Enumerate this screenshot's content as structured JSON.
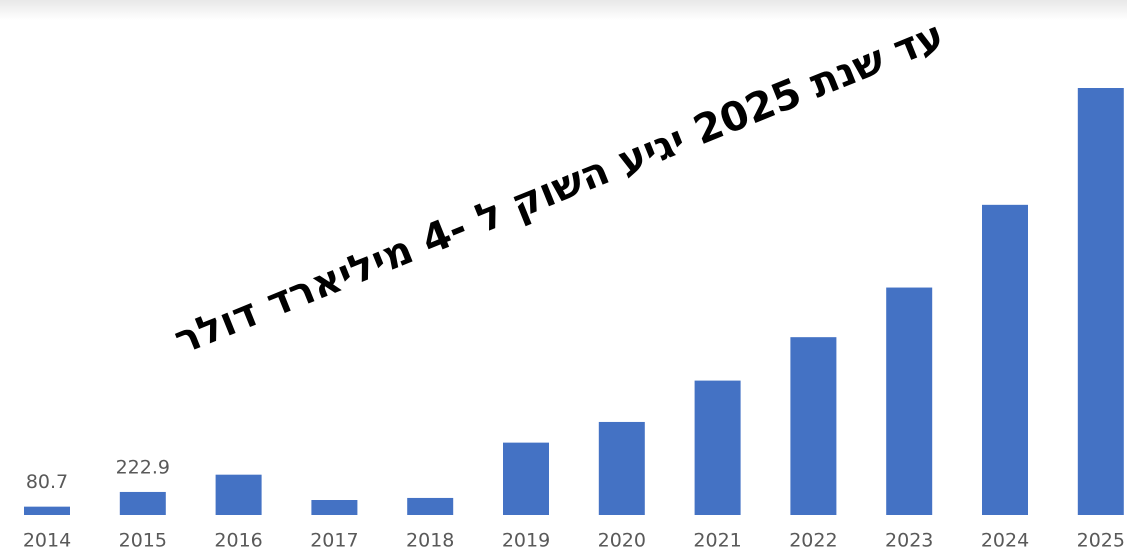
{
  "chart_data": {
    "type": "bar",
    "title": "עד שנת 2025 יגיע השוק ל -4 מיליארד דולר",
    "categories": [
      "2014",
      "2015",
      "2016",
      "2017",
      "2018",
      "2019",
      "2020",
      "2021",
      "2022",
      "2023",
      "2024",
      "2025"
    ],
    "values": [
      80.7,
      222.9,
      390,
      145,
      165,
      700,
      900,
      1300,
      1720,
      2200,
      3000,
      4130
    ],
    "value_labels": [
      "80.7",
      "222.9",
      null,
      null,
      null,
      null,
      null,
      null,
      null,
      null,
      null,
      null
    ],
    "color": "#4472c4"
  }
}
